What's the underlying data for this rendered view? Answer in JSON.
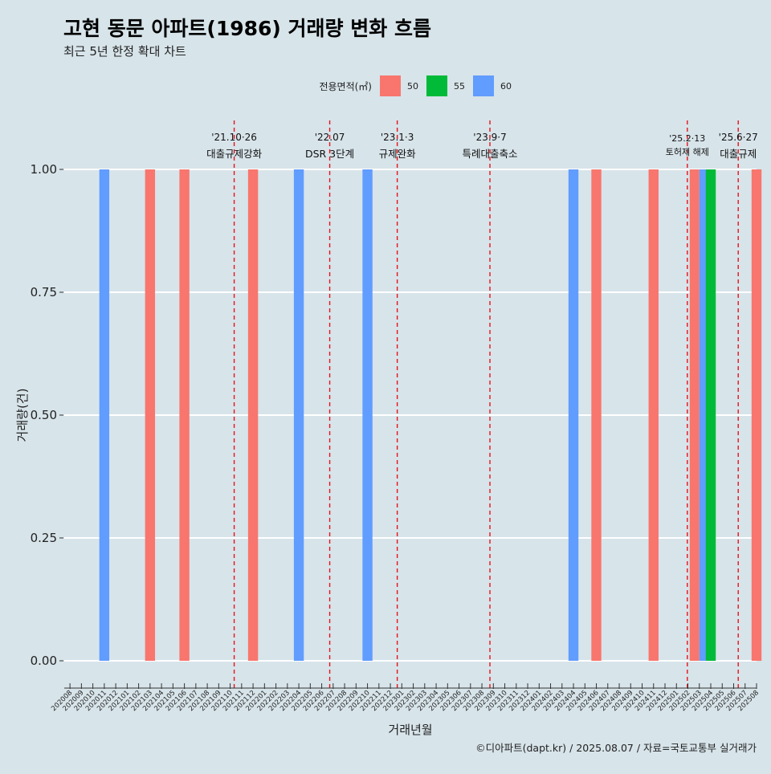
{
  "chart_data": {
    "type": "bar",
    "title": "고현 동문 아파트(1986) 거래량 변화 흐름",
    "subtitle": "최근 5년 한정 확대 차트",
    "xlabel": "거래년월",
    "ylabel": "거래량(건)",
    "caption": "©디아파트(dapt.kr) / 2025.08.07 / 자료=국토교통부 실거래가",
    "legend": {
      "title": "전용면적(㎡)",
      "position": "top",
      "items": [
        {
          "name": "50",
          "color": "#f8766d"
        },
        {
          "name": "55",
          "color": "#00ba38"
        },
        {
          "name": "60",
          "color": "#619cff"
        }
      ]
    },
    "ylim": [
      0,
      1
    ],
    "yticks": [
      "0.00",
      "0.25",
      "0.50",
      "0.75",
      "1.00"
    ],
    "ytick_values": [
      0,
      0.25,
      0.5,
      0.75,
      1.0
    ],
    "categories": [
      "202008",
      "202009",
      "202010",
      "202011",
      "202012",
      "202101",
      "202102",
      "202103",
      "202104",
      "202105",
      "202106",
      "202107",
      "202108",
      "202109",
      "202110",
      "202111",
      "202112",
      "202201",
      "202202",
      "202203",
      "202204",
      "202205",
      "202206",
      "202207",
      "202208",
      "202209",
      "202210",
      "202211",
      "202212",
      "202301",
      "202302",
      "202303",
      "202304",
      "202305",
      "202306",
      "202307",
      "202308",
      "202309",
      "202310",
      "202311",
      "202312",
      "202401",
      "202402",
      "202403",
      "202404",
      "202405",
      "202406",
      "202407",
      "202408",
      "202409",
      "202410",
      "202411",
      "202412",
      "202501",
      "202502",
      "202503",
      "202504",
      "202505",
      "202506",
      "202507",
      "202508"
    ],
    "bars": [
      {
        "month": "202011",
        "area": "60",
        "value": 1
      },
      {
        "month": "202103",
        "area": "50",
        "value": 1
      },
      {
        "month": "202106",
        "area": "50",
        "value": 1
      },
      {
        "month": "202112",
        "area": "50",
        "value": 1
      },
      {
        "month": "202204",
        "area": "60",
        "value": 1
      },
      {
        "month": "202210",
        "area": "60",
        "value": 1
      },
      {
        "month": "202404",
        "area": "60",
        "value": 1
      },
      {
        "month": "202406",
        "area": "50",
        "value": 1
      },
      {
        "month": "202411",
        "area": "50",
        "value": 1
      },
      {
        "month": "202503",
        "area": "50",
        "value": 1
      },
      {
        "month": "202503",
        "area": "60",
        "value": 1
      },
      {
        "month": "202504",
        "area": "55",
        "value": 1
      },
      {
        "month": "202508",
        "area": "50",
        "value": 1
      }
    ],
    "events": [
      {
        "month": "202110",
        "offset": 0.85,
        "date": "'21.10·26",
        "label": "대출규제강화"
      },
      {
        "month": "202207",
        "offset": 0.2,
        "date": "'22.07",
        "label": "DSR 3단계"
      },
      {
        "month": "202301",
        "offset": 0.1,
        "date": "'23.1·3",
        "label": "규제완화"
      },
      {
        "month": "202309",
        "offset": 0.2,
        "date": "'23.9·7",
        "label": "특례대출축소"
      },
      {
        "month": "202502",
        "offset": 0.45,
        "date": "'25.2·13",
        "label": "토허제 해제"
      },
      {
        "month": "202506",
        "offset": 0.9,
        "date": "'25.6·27",
        "label": "대출규제"
      }
    ]
  }
}
